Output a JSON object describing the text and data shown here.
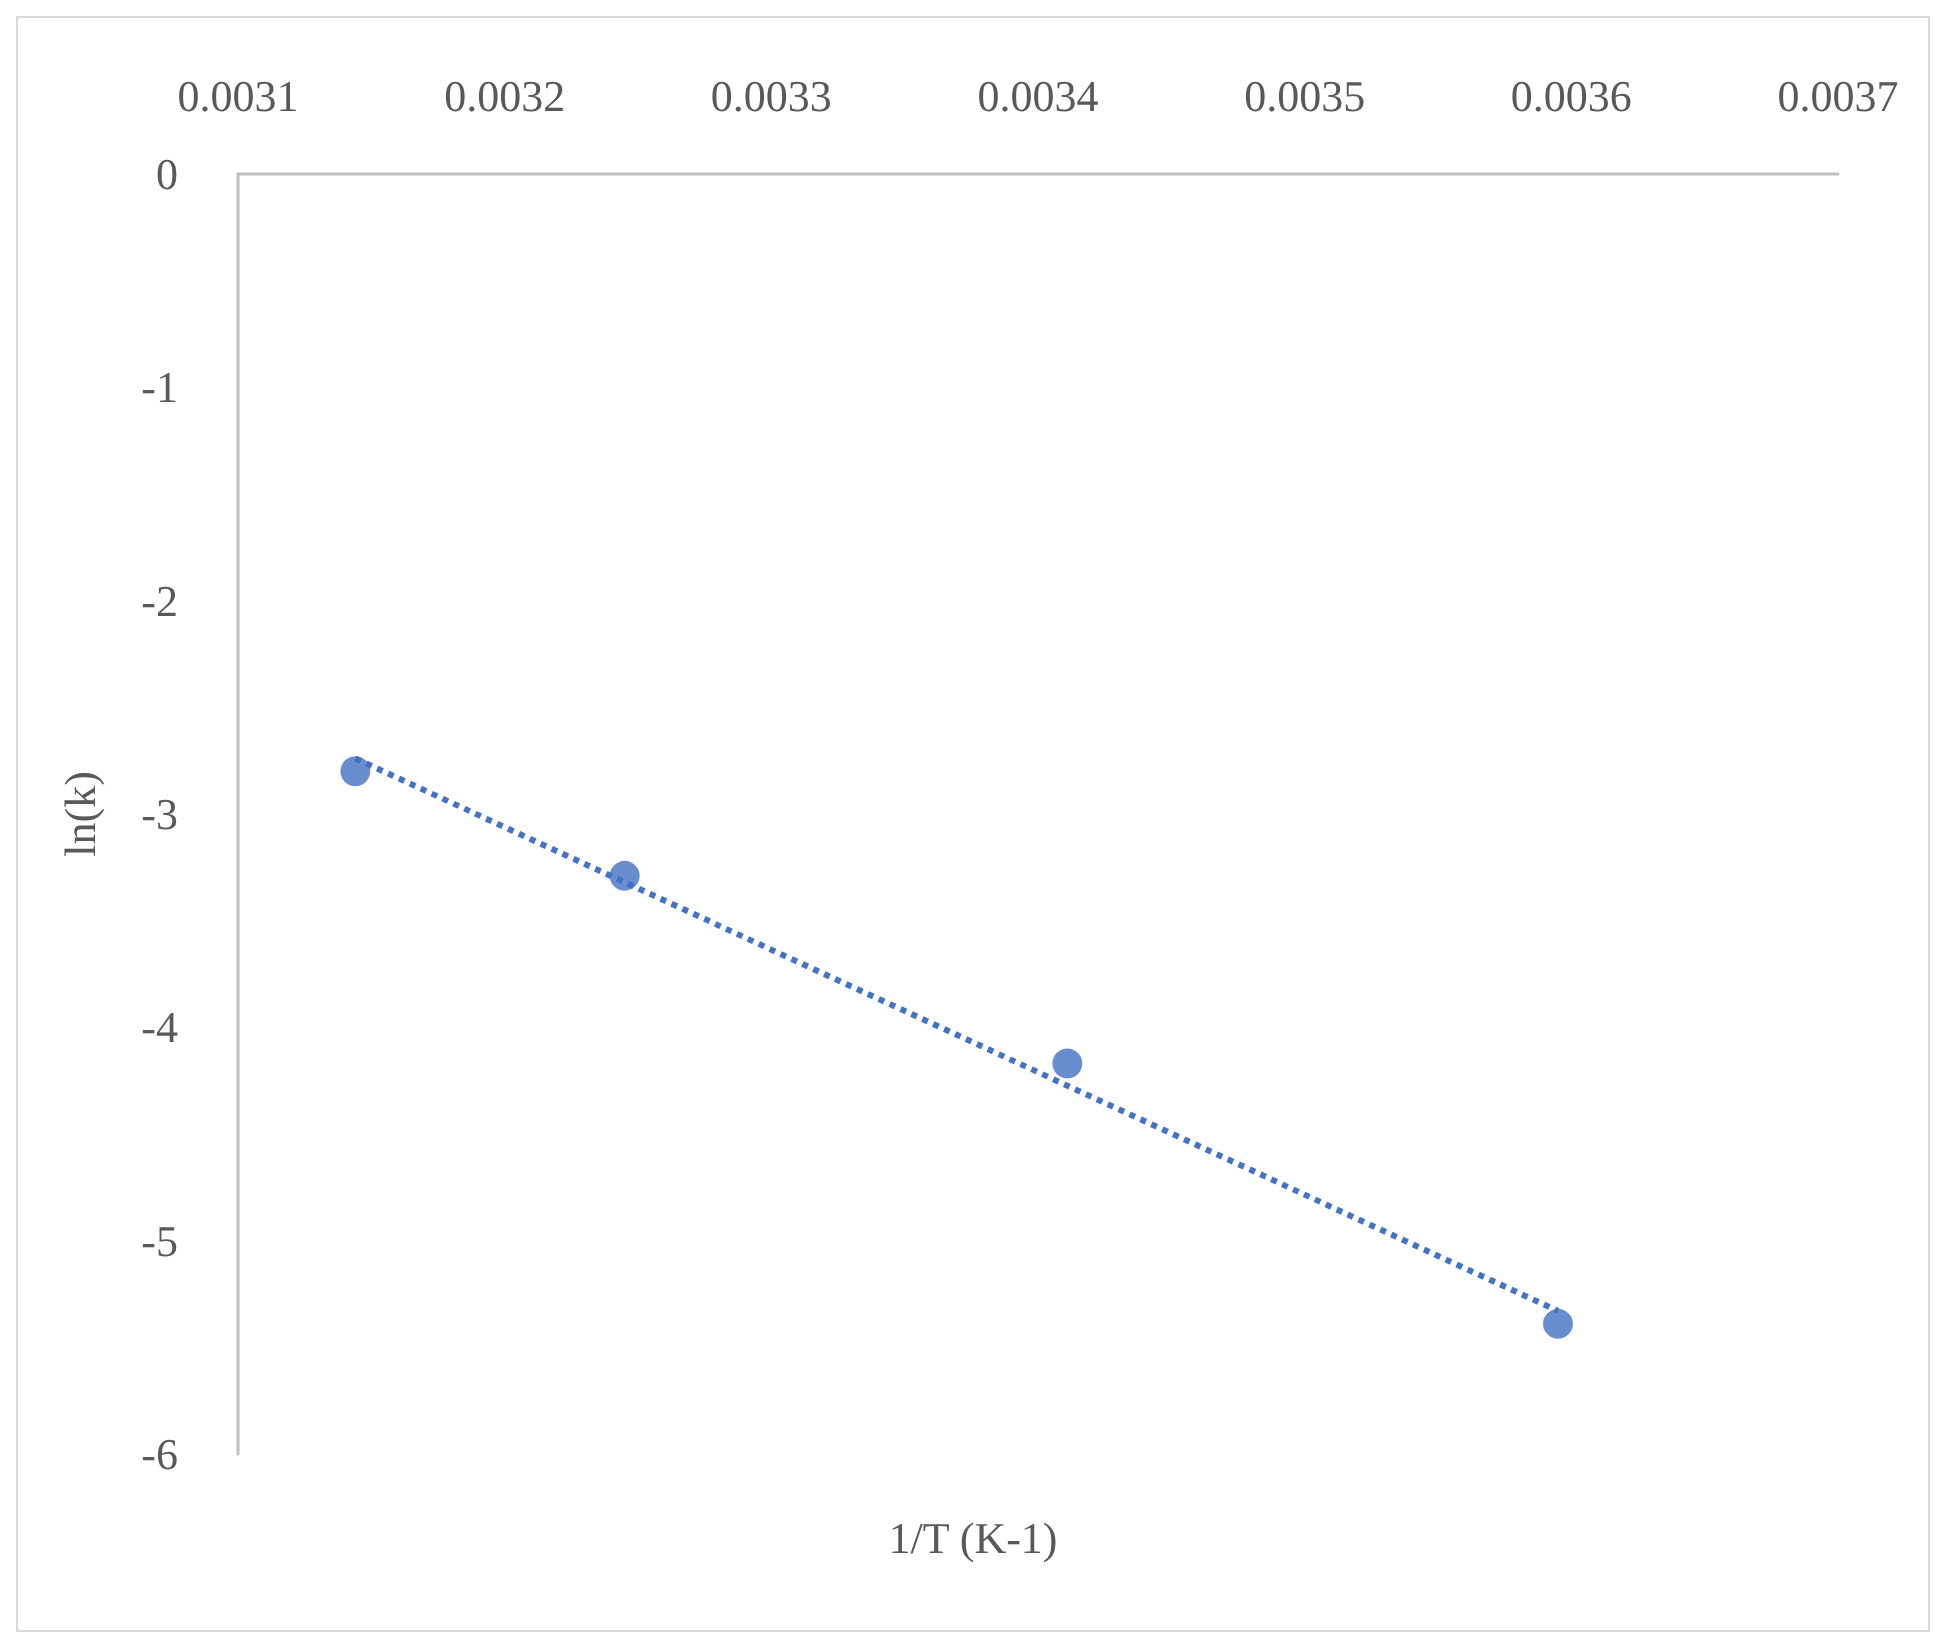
{
  "chart_data": {
    "type": "scatter",
    "xlabel": "1/T (K-1)",
    "ylabel": "ln(k)",
    "xlim": [
      0.0031,
      0.0037
    ],
    "xticks": [
      0.0031,
      0.0032,
      0.0033,
      0.0034,
      0.0035,
      0.0036,
      0.0037
    ],
    "ylim": [
      -6,
      0
    ],
    "yticks": [
      -6,
      -5,
      -4,
      -3,
      -2,
      -1,
      0
    ],
    "grid": false,
    "marker": "circle",
    "series": [
      {
        "color": "#4472c4",
        "x": [
          0.003144,
          0.003245,
          0.003411,
          0.003595
        ],
        "values": [
          -2.8,
          -3.29,
          -4.17,
          -5.39
        ]
      },
      {
        "type": "line",
        "color": "#4472c4",
        "line_style": "dotted",
        "marker": "none",
        "x": [
          0.003144,
          0.003595
        ],
        "values": [
          -2.74,
          -5.33
        ]
      }
    ]
  }
}
